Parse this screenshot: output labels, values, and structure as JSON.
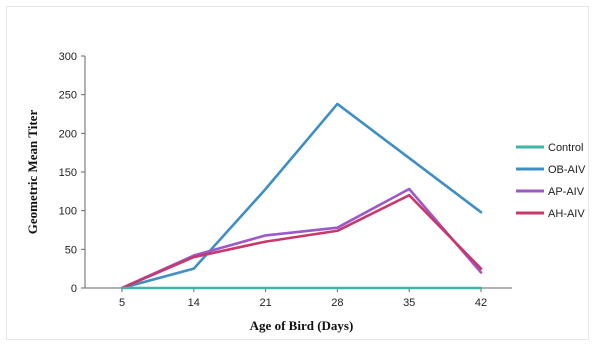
{
  "chart_data": {
    "type": "line",
    "title": "",
    "xlabel": "Age of Bird (Days)",
    "ylabel": "Geometric Mean Titer",
    "categories": [
      "5",
      "14",
      "21",
      "28",
      "35",
      "42"
    ],
    "ylim": [
      0,
      300
    ],
    "yticks": [
      "0",
      "50",
      "100",
      "150",
      "200",
      "250",
      "300"
    ],
    "grid": false,
    "legend_position": "right",
    "series": [
      {
        "name": "Control",
        "color": "#3fb6a3",
        "values": [
          0,
          0,
          0,
          0,
          0,
          0
        ]
      },
      {
        "name": "OB-AIV",
        "color": "#3f8fc4",
        "values": [
          0,
          25,
          128,
          238,
          168,
          98
        ]
      },
      {
        "name": "AP-AIV",
        "color": "#9b59c9",
        "values": [
          0,
          42,
          68,
          78,
          128,
          20
        ]
      },
      {
        "name": "AH-AIV",
        "color": "#c8386a",
        "values": [
          0,
          40,
          60,
          74,
          120,
          25
        ]
      }
    ]
  }
}
